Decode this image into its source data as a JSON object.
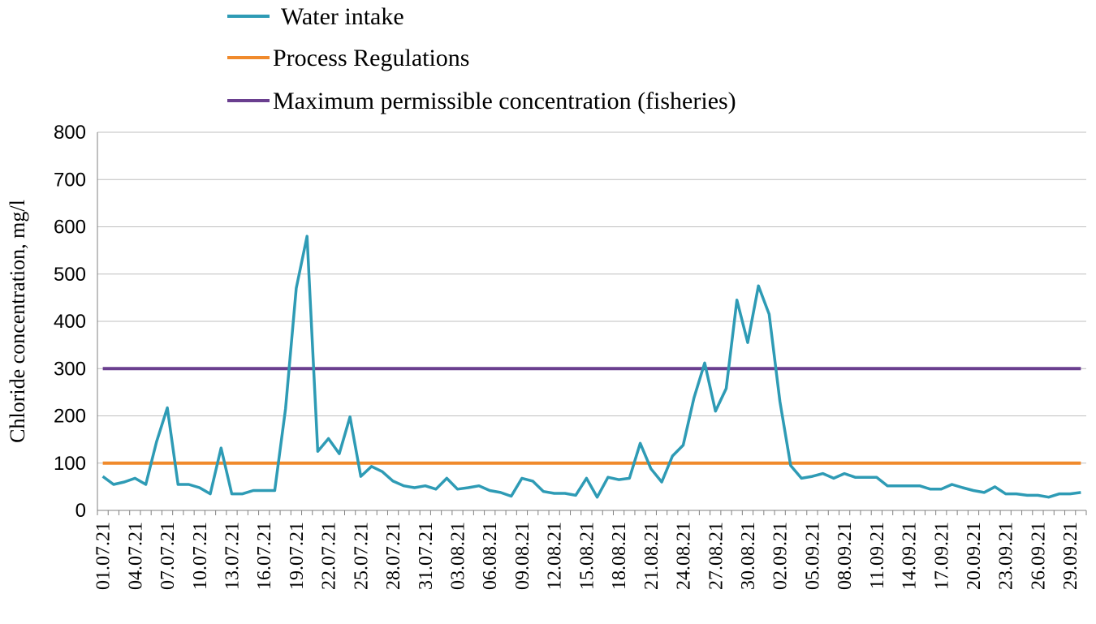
{
  "chart_data": {
    "type": "line",
    "title": "",
    "xlabel": "",
    "ylabel": "Chloride concentration, mg/l",
    "ylim": [
      0,
      800
    ],
    "yticks": [
      0,
      100,
      200,
      300,
      400,
      500,
      600,
      700,
      800
    ],
    "grid": "horizontal",
    "legend_position": "top",
    "colors": {
      "water": "#2E9BB5",
      "process": "#F08A2C",
      "mpc": "#6A3F8F"
    },
    "x_tick_labels": [
      "01.07.21",
      "04.07.21",
      "07.07.21",
      "10.07.21",
      "13.07.21",
      "16.07.21",
      "19.07.21",
      "22.07.21",
      "25.07.21",
      "28.07.21",
      "31.07.21",
      "03.08.21",
      "06.08.21",
      "09.08.21",
      "12.08.21",
      "15.08.21",
      "18.08.21",
      "21.08.21",
      "24.08.21",
      "27.08.21",
      "30.08.21",
      "02.09.21",
      "05.09.21",
      "08.09.21",
      "11.09.21",
      "14.09.21",
      "17.09.21",
      "20.09.21",
      "23.09.21",
      "26.09.21",
      "29.09.21"
    ],
    "series": [
      {
        "name": "Water intake",
        "values": [
          72,
          55,
          60,
          68,
          55,
          145,
          217,
          55,
          55,
          48,
          35,
          132,
          35,
          35,
          42,
          42,
          42,
          215,
          470,
          580,
          125,
          152,
          120,
          198,
          72,
          93,
          82,
          62,
          52,
          48,
          52,
          45,
          68,
          45,
          48,
          52,
          42,
          38,
          30,
          68,
          62,
          40,
          36,
          36,
          32,
          68,
          28,
          70,
          65,
          68,
          142,
          88,
          60,
          115,
          138,
          238,
          312,
          210,
          258,
          445,
          355,
          475,
          415,
          230,
          95,
          68,
          72,
          78,
          68,
          78,
          70,
          70,
          70,
          52,
          52,
          52,
          52,
          45,
          45,
          55,
          48,
          42,
          38,
          50,
          35,
          35,
          32,
          32,
          28,
          35,
          35,
          38
        ],
        "color": "#2E9BB5"
      },
      {
        "name": "Process Regulations",
        "values": [
          100,
          100
        ],
        "color": "#F08A2C"
      },
      {
        "name": "Maximum permissible concentration (fisheries)",
        "values": [
          300,
          300
        ],
        "color": "#6A3F8F"
      }
    ]
  }
}
